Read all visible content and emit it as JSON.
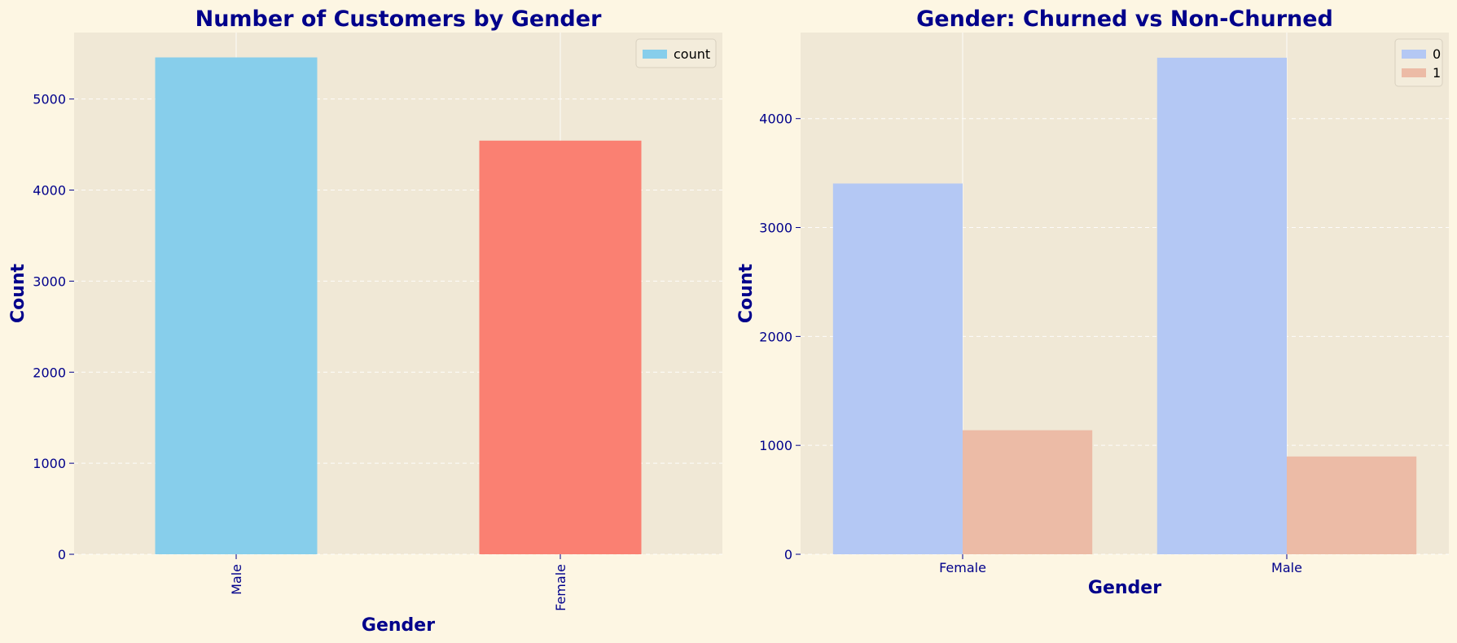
{
  "colors": {
    "background": "#fdf6e3",
    "plot_bg": "#f0e8d6",
    "text": "#00008b",
    "grid": "#ffffff"
  },
  "chart_data": [
    {
      "type": "bar",
      "title": "Number of Customers by Gender",
      "xlabel": "Gender",
      "ylabel": "Count",
      "categories": [
        "Male",
        "Female"
      ],
      "series": [
        {
          "name": "count",
          "values": [
            5457,
            4543
          ]
        }
      ],
      "bar_colors": [
        "#87ceeb",
        "#fa8072"
      ],
      "legend_color": "#87ceeb",
      "ylim": [
        0,
        5730
      ],
      "yticks": [
        0,
        1000,
        2000,
        3000,
        4000,
        5000
      ],
      "xtick_rotation": "vertical",
      "grid": true,
      "legend_position": "top-right"
    },
    {
      "type": "bar",
      "title": "Gender: Churned vs Non-Churned",
      "xlabel": "Gender",
      "ylabel": "Count",
      "categories": [
        "Female",
        "Male"
      ],
      "series": [
        {
          "name": "0",
          "values": [
            3404,
            4559
          ],
          "color": "#b4c8f4"
        },
        {
          "name": "1",
          "values": [
            1139,
            898
          ],
          "color": "#ecbba6"
        }
      ],
      "ylim": [
        0,
        4790
      ],
      "yticks": [
        0,
        1000,
        2000,
        3000,
        4000
      ],
      "grid": true,
      "legend_position": "top-right"
    }
  ]
}
